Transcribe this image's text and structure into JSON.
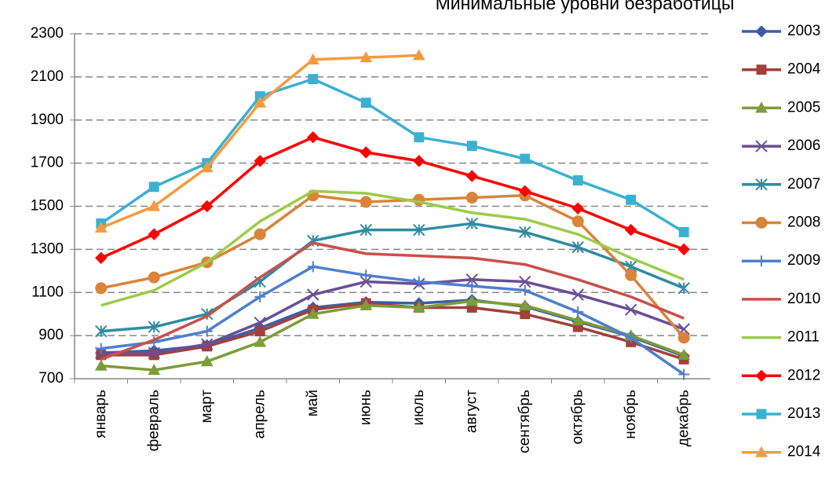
{
  "chart_data": {
    "type": "line",
    "title": "Минимальные уровни безработицы",
    "categories": [
      "январь",
      "февраль",
      "март",
      "апрель",
      "май",
      "июнь",
      "июль",
      "август",
      "сентябрь",
      "октябрь",
      "ноябрь",
      "декабрь"
    ],
    "ylim": [
      700,
      2300
    ],
    "yticks": [
      700,
      900,
      1100,
      1300,
      1500,
      1700,
      1900,
      2100,
      2300
    ],
    "grid": true,
    "legend": "right",
    "series": [
      {
        "name": "2003",
        "color": "#3b5ea8",
        "marker": "diamond",
        "values": [
          820,
          830,
          855,
          935,
          1030,
          1055,
          1050,
          1065,
          1035,
          965,
          895,
          805
        ]
      },
      {
        "name": "2004",
        "color": "#a0413c",
        "marker": "square",
        "values": [
          810,
          810,
          850,
          920,
          1020,
          1050,
          1030,
          1030,
          1000,
          940,
          870,
          790
        ]
      },
      {
        "name": "2005",
        "color": "#7f9b3a",
        "marker": "triangle",
        "values": [
          760,
          740,
          780,
          870,
          1000,
          1040,
          1030,
          1060,
          1040,
          970,
          900,
          810
        ]
      },
      {
        "name": "2006",
        "color": "#6a4e96",
        "marker": "x",
        "values": [
          820,
          820,
          860,
          960,
          1090,
          1150,
          1140,
          1160,
          1150,
          1090,
          1020,
          930
        ]
      },
      {
        "name": "2007",
        "color": "#2f8ca0",
        "marker": "star",
        "values": [
          920,
          940,
          1000,
          1150,
          1340,
          1390,
          1390,
          1420,
          1380,
          1310,
          1220,
          1120
        ]
      },
      {
        "name": "2008",
        "color": "#d9843a",
        "marker": "circle",
        "values": [
          1120,
          1170,
          1240,
          1370,
          1550,
          1520,
          1530,
          1540,
          1550,
          1430,
          1180,
          890
        ]
      },
      {
        "name": "2009",
        "color": "#4f7fcc",
        "marker": "plus",
        "values": [
          840,
          870,
          920,
          1080,
          1220,
          1180,
          1150,
          1130,
          1110,
          1010,
          890,
          720
        ]
      },
      {
        "name": "2010",
        "color": "#c9504c",
        "marker": "none",
        "values": [
          790,
          880,
          990,
          1170,
          1330,
          1280,
          1270,
          1260,
          1230,
          1160,
          1080,
          980
        ]
      },
      {
        "name": "2011",
        "color": "#9ccc4a",
        "marker": "none",
        "values": [
          1040,
          1110,
          1240,
          1430,
          1570,
          1560,
          1520,
          1470,
          1440,
          1370,
          1260,
          1160
        ]
      },
      {
        "name": "2012",
        "color": "#ff0000",
        "marker": "diamond",
        "values": [
          1260,
          1370,
          1500,
          1710,
          1820,
          1750,
          1710,
          1640,
          1570,
          1490,
          1390,
          1300
        ]
      },
      {
        "name": "2013",
        "color": "#3bb1d1",
        "marker": "square",
        "values": [
          1420,
          1590,
          1700,
          2010,
          2090,
          1980,
          1820,
          1780,
          1720,
          1620,
          1530,
          1380
        ]
      },
      {
        "name": "2014",
        "color": "#f79a3e",
        "marker": "triangle",
        "values": [
          1400,
          1500,
          1680,
          1980,
          2180,
          2190,
          2200,
          null,
          null,
          null,
          null,
          null
        ]
      }
    ]
  }
}
